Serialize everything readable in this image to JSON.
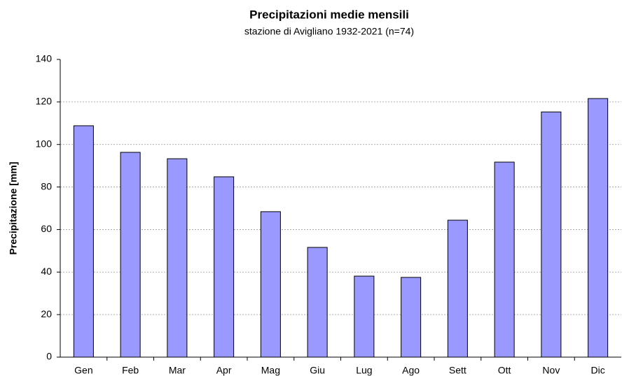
{
  "chart_data": {
    "type": "bar",
    "title": "Precipitazioni medie mensili",
    "subtitle": "stazione di Avigliano 1932-2021 (n=74)",
    "y_label": "Precipitazione [mm]",
    "categories": [
      "Gen",
      "Feb",
      "Mar",
      "Apr",
      "Mag",
      "Giu",
      "Lug",
      "Ago",
      "Sett",
      "Ott",
      "Nov",
      "Dic"
    ],
    "values": [
      108.8,
      96.3,
      93.3,
      84.8,
      68.4,
      51.6,
      38.1,
      37.5,
      64.4,
      91.7,
      115.3,
      121.6
    ],
    "color": "#9999ff",
    "ylim": [
      0,
      140
    ],
    "yticks": [
      0,
      20,
      40,
      60,
      80,
      100,
      120,
      140
    ],
    "grid": true
  }
}
